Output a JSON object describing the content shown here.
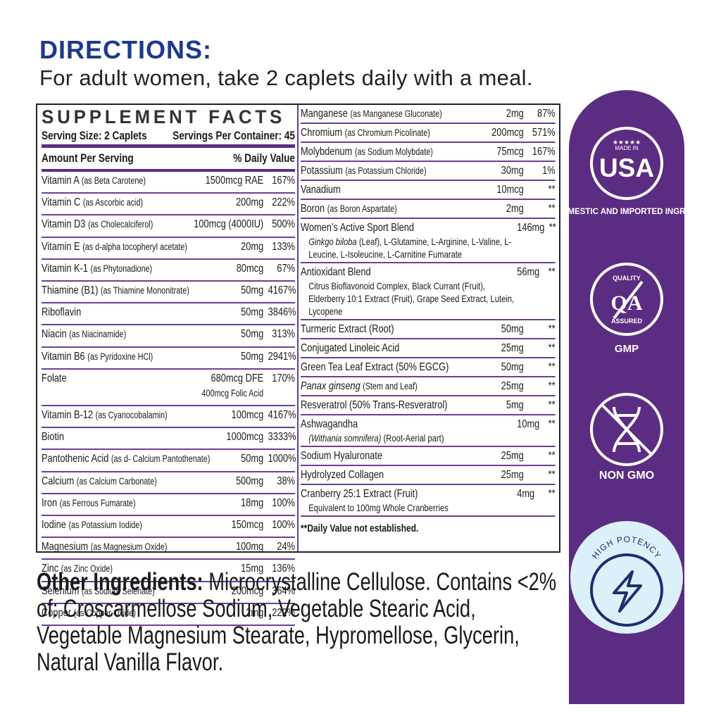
{
  "directions": {
    "heading": "DIRECTIONS:",
    "text": "For adult women, take 2 caplets daily with a meal."
  },
  "facts": {
    "title": "SUPPLEMENT FACTS",
    "serving_size": "Serving Size: 2 Caplets",
    "servings_per_container": "Servings Per Container: 45",
    "amount_header": "Amount Per Serving",
    "dv_header": "% Daily Value",
    "left_rows": [
      {
        "name": "Vitamin A",
        "note": "(as Beta Carotene)",
        "amount": "1500mcg RAE",
        "dv": "167%"
      },
      {
        "name": "Vitamin C",
        "note": "(as Ascorbic acid)",
        "amount": "200mg",
        "dv": "222%"
      },
      {
        "name": "Vitamin D3",
        "note": "(as Cholecalciferol)",
        "amount": "100mcg (4000IU)",
        "dv": "500%"
      },
      {
        "name": "Vitamin E",
        "note": "(as d-alpha tocopheryl acetate)",
        "amount": "20mg",
        "dv": "133%"
      },
      {
        "name": "Vitamin K-1",
        "note": "(as Phytonadione)",
        "amount": "80mcg",
        "dv": "67%"
      },
      {
        "name": "Thiamine (B1)",
        "note": "(as Thiamine Mononitrate)",
        "amount": "50mg",
        "dv": "4167%"
      },
      {
        "name": "Riboflavin",
        "amount": "50mg",
        "dv": "3846%"
      },
      {
        "name": "Niacin",
        "note": "(as Niacinamide)",
        "amount": "50mg",
        "dv": "313%"
      },
      {
        "name": "Vitamin B6",
        "note": "(as Pyridoxine HCl)",
        "amount": "50mg",
        "dv": "2941%"
      },
      {
        "name": "Folate",
        "amount": "680mcg DFE",
        "amount2": "400mcg Folic Acid",
        "dv": "170%"
      },
      {
        "name": "Vitamin B-12",
        "note": "(as Cyanocobalamin)",
        "amount": "100mcg",
        "dv": "4167%"
      },
      {
        "name": "Biotin",
        "amount": "1000mcg",
        "dv": "3333%"
      },
      {
        "name": "Pantothenic Acid",
        "note": "(as d- Calcium Pantothenate)",
        "amount": "50mg",
        "dv": "1000%"
      },
      {
        "name": "Calcium",
        "note": "(as Calcium Carbonate)",
        "amount": "500mg",
        "dv": "38%"
      },
      {
        "name": "Iron",
        "note": "(as Ferrous Fumarate)",
        "amount": "18mg",
        "dv": "100%"
      },
      {
        "name": "Iodine",
        "note": "(as Potassium Iodide)",
        "amount": "150mcg",
        "dv": "100%"
      },
      {
        "name": "Magnesium",
        "note": "(as Magnesium Oxide)",
        "amount": "100mg",
        "dv": "24%"
      },
      {
        "name": "Zinc",
        "note": "(as Zinc Oxide)",
        "amount": "15mg",
        "dv": "136%"
      },
      {
        "name": "Selenium",
        "note": "(as Sodium Selenate)",
        "amount": "200mcg",
        "dv": "364%"
      },
      {
        "name": "Copper",
        "note": "(as Copper Oxide)",
        "amount": "2mg",
        "dv": "222%"
      }
    ],
    "right_rows": [
      {
        "name": "Manganese",
        "note": "(as Manganese Gluconate)",
        "amount": "2mg",
        "dv": "87%"
      },
      {
        "name": "Chromium",
        "note": "(as Chromium Picolinate)",
        "amount": "200mcg",
        "dv": "571%"
      },
      {
        "name": "Molybdenum",
        "note": "(as Sodium Molybdate)",
        "amount": "75mcg",
        "dv": "167%"
      },
      {
        "name": "Potassium",
        "note": "(as Potassium Chloride)",
        "amount": "30mg",
        "dv": "1%"
      },
      {
        "name": "Vanadium",
        "amount": "10mcg",
        "dv": "**"
      },
      {
        "name": "Boron",
        "note": "(as Boron Aspartate)",
        "amount": "2mg",
        "dv": "**"
      },
      {
        "name": "Women’s Active Sport Blend",
        "amount": "146mg",
        "dv": "**",
        "detail_italic": "Ginkgo biloba",
        "detail": "(Leaf), L-Glutamine, L-Arginine, L-Valine, L-Leucine, L-Isoleucine, L-Carnitine Fumarate"
      },
      {
        "name": "Antioxidant Blend",
        "amount": "56mg",
        "dv": "**",
        "detail": "Citrus Bioflavonoid Complex, Black Currant (Fruit), Elderberry 10:1 Extract (Fruit), Grape Seed Extract, Lutein, Lycopene"
      },
      {
        "name": "Turmeric Extract (Root)",
        "amount": "50mg",
        "dv": "**"
      },
      {
        "name": "Conjugated Linoleic Acid",
        "amount": "25mg",
        "dv": "**"
      },
      {
        "name": "Green Tea Leaf Extract (50% EGCG)",
        "amount": "50mg",
        "dv": "**"
      },
      {
        "name_italic": "Panax ginseng",
        "note": "(Stem and Leaf)",
        "amount": "25mg",
        "dv": "**"
      },
      {
        "name": "Resveratrol (50% Trans-Resveratrol)",
        "amount": "5mg",
        "dv": "**"
      },
      {
        "name": "Ashwagandha",
        "amount": "10mg",
        "dv": "**",
        "detail_italic": "(Withania somnifera)",
        "detail": "(Root-Aerial part)"
      },
      {
        "name": "Sodium Hyaluronate",
        "amount": "25mg",
        "dv": "**"
      },
      {
        "name": "Hydrolyzed Collagen",
        "amount": "25mg",
        "dv": "**"
      },
      {
        "name": "Cranberry 25:1 Extract (Fruit)",
        "amount": "4mg",
        "dv": "**",
        "detail": "Equivalent to 100mg Whole Cranberries"
      }
    ],
    "footnote": "**Daily Value not established."
  },
  "other_ingredients": {
    "label": "Other Ingredients:",
    "text": "Microcrystalline Cellulose. Contains <2% of: Croscarmellose Sodium, Vegetable Stearic Acid, Vegetable Magnesium Stearate, Hypromellose, Glycerin, Natural Vanilla Flavor."
  },
  "badges": {
    "usa": {
      "top": "MADE IN",
      "main": "USA",
      "caption": "WITH DOMESTIC AND IMPORTED INGREDIENTS"
    },
    "quality": {
      "top": "QUALITY",
      "main": "QA",
      "bottom": "ASSURED",
      "caption": "GMP"
    },
    "non_gmo": {
      "caption": "NON GMO"
    },
    "potency": {
      "label": "HIGH POTENCY"
    }
  }
}
